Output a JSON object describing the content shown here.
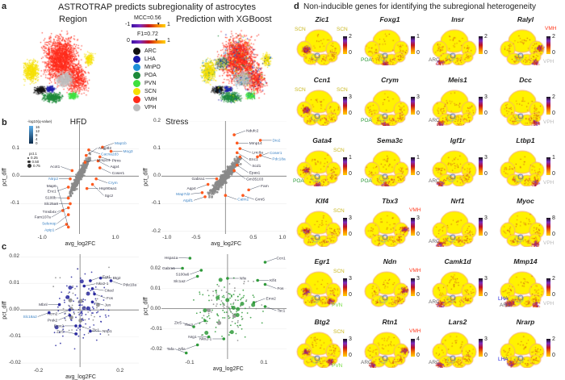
{
  "panel_a": {
    "letter": "a",
    "title": "ASTROTRAP predicts subregionality of astrocytes",
    "left_title": "Region",
    "right_title": "Prediction with XGBoost",
    "mcc": {
      "label": "MCC=0.56",
      "min": "-1",
      "max": "1",
      "value": 0.56
    },
    "f1": {
      "label": "F1=0.72",
      "min": "0",
      "max": "1",
      "value": 0.72
    },
    "legend": [
      {
        "name": "ARC",
        "color": "#111111"
      },
      {
        "name": "LHA",
        "color": "#1a1aa8"
      },
      {
        "name": "MnPO",
        "color": "#1e90d8"
      },
      {
        "name": "POA",
        "color": "#1d8a3a"
      },
      {
        "name": "PVN",
        "color": "#3ee03e"
      },
      {
        "name": "SCN",
        "color": "#f5e000"
      },
      {
        "name": "VMH",
        "color": "#ff2a1a"
      },
      {
        "name": "VPH",
        "color": "#bdbdbd"
      }
    ]
  },
  "panel_b": {
    "letter": "b"
  },
  "panel_c": {
    "letter": "c"
  },
  "legend_b": {
    "qtitle": "-log10(q-value)",
    "qticks": [
      "16",
      "12",
      "8",
      "4",
      "0"
    ],
    "ptitle": "pct.1",
    "pticks": [
      "0.25",
      "0.50",
      "0.75"
    ]
  },
  "chart_data": [
    {
      "id": "hfd",
      "type": "scatter",
      "title": "HFD",
      "xlabel": "avg_log2FC",
      "ylabel": "pct_diff",
      "xlim": [
        -1.6,
        1.6
      ],
      "ylim": [
        -0.21,
        0.2
      ],
      "xticks": [
        "-1.0",
        "1.0"
      ],
      "xtickv": [
        -1,
        1
      ],
      "yticks": [
        "0.1",
        "0.0",
        "-0.1"
      ],
      "ytickv": [
        0.1,
        0,
        -0.1
      ],
      "point_color": "#ff5a1f",
      "points": [
        {
          "g": "Map1b",
          "x": 0.62,
          "y": 0.105,
          "c": "#3b82c4"
        },
        {
          "g": "Mog3",
          "x": 0.85,
          "y": 0.09,
          "c": "#3b82c4"
        },
        {
          "g": "Cacna2d3",
          "x": 0.25,
          "y": 0.095,
          "c": "#3b82c4"
        },
        {
          "g": "Angptl2",
          "x": 0.18,
          "y": 0.075,
          "c": "#334"
        },
        {
          "g": "Ptms",
          "x": 0.55,
          "y": 0.07,
          "c": "#334"
        },
        {
          "g": "Aqp4",
          "x": 0.5,
          "y": 0.055,
          "c": "#334"
        },
        {
          "g": "Mmp14",
          "x": 0.15,
          "y": 0.05,
          "c": "#334"
        },
        {
          "g": "Coser1",
          "x": 0.55,
          "y": 0.03,
          "c": "#334"
        },
        {
          "g": "Crym",
          "x": 0.45,
          "y": -0.01,
          "c": "#3b82c4"
        },
        {
          "g": "Acot1",
          "x": -0.2,
          "y": 0.02,
          "c": "#334"
        },
        {
          "g": "Ntrp2",
          "x": -0.25,
          "y": -0.01,
          "c": "#3b82c4"
        },
        {
          "g": "Enc1",
          "x": -0.3,
          "y": -0.04,
          "c": "#334"
        },
        {
          "g": "S100b",
          "x": -0.3,
          "y": -0.08,
          "c": "#334"
        },
        {
          "g": "Slc25a8",
          "x": -0.25,
          "y": -0.1,
          "c": "#334"
        },
        {
          "g": "Tmsb4x",
          "x": -0.3,
          "y": -0.115,
          "c": "#334"
        },
        {
          "g": "Fam107a",
          "x": -0.45,
          "y": -0.125,
          "c": "#334"
        },
        {
          "g": "Selenop",
          "x": -0.3,
          "y": -0.14,
          "c": "#3b82c4"
        },
        {
          "g": "Apip1",
          "x": -0.35,
          "y": -0.175,
          "c": "#3b82c4"
        },
        {
          "g": "Map6",
          "x": -0.3,
          "y": -0.185,
          "c": "#334"
        },
        {
          "g": "Hsp90aa1",
          "x": 0.2,
          "y": -0.045,
          "c": "#334"
        },
        {
          "g": "Sgcz",
          "x": 0.35,
          "y": -0.03,
          "c": "#334"
        }
      ]
    },
    {
      "id": "stress",
      "type": "scatter",
      "title": "Stress",
      "xlabel": "avg_log2FC",
      "ylabel": "pct_diff",
      "xlim": [
        -1.1,
        1.05
      ],
      "ylim": [
        -0.21,
        0.2
      ],
      "xticks": [
        "-1.0",
        "-0.5",
        "0.5",
        "1.0"
      ],
      "xtickv": [
        -1,
        -0.5,
        0.5,
        1
      ],
      "yticks": [
        "0.2",
        "0.1",
        "0.0",
        "-0.1",
        "-0.2"
      ],
      "ytickv": [
        0.2,
        0.1,
        0,
        -0.1,
        -0.2
      ],
      "point_color": "#ff5a1f",
      "points": [
        {
          "g": "Ndufc2",
          "x": 0.15,
          "y": 0.15,
          "c": "#334"
        },
        {
          "g": "Mmp14",
          "x": 0.2,
          "y": 0.12,
          "c": "#334"
        },
        {
          "g": "Lrrc8a",
          "x": 0.25,
          "y": 0.1,
          "c": "#334"
        },
        {
          "g": "Enc1",
          "x": 0.2,
          "y": 0.085,
          "c": "#334"
        },
        {
          "g": "Scd1",
          "x": 0.25,
          "y": 0.07,
          "c": "#334"
        },
        {
          "g": "Epas1",
          "x": 0.2,
          "y": 0.04,
          "c": "#334"
        },
        {
          "g": "Gm35103",
          "x": 0.15,
          "y": 0.02,
          "c": "#334"
        },
        {
          "g": "Gabra1",
          "x": -0.15,
          "y": -0.01,
          "c": "#334"
        },
        {
          "g": "Aqp4",
          "x": -0.3,
          "y": -0.03,
          "c": "#334"
        },
        {
          "g": "Map7d2",
          "x": -0.4,
          "y": -0.06,
          "c": "#3b82c4"
        },
        {
          "g": "Atpif1",
          "x": -0.35,
          "y": -0.075,
          "c": "#3b82c4"
        },
        {
          "g": "Calm2",
          "x": 0.0,
          "y": -0.07,
          "c": "#3b82c4"
        },
        {
          "g": "Coser1",
          "x": 0.55,
          "y": 0.07,
          "c": "#3b82c4"
        },
        {
          "g": "Dio2",
          "x": 0.6,
          "y": 0.13,
          "c": "#3b82c4"
        },
        {
          "g": "Grm5",
          "x": 0.3,
          "y": -0.07,
          "c": "#334"
        },
        {
          "g": "Fam",
          "x": 0.4,
          "y": -0.05,
          "c": "#334"
        },
        {
          "g": "Pdc18a",
          "x": 0.6,
          "y": 0.075,
          "c": "#3b82c4"
        }
      ]
    },
    {
      "id": "c_left",
      "type": "scatter",
      "xlabel": "avg_log2FC",
      "ylabel": "pct_diff",
      "xlim": [
        -0.29,
        0.285
      ],
      "ylim": [
        -0.0215,
        0.021
      ],
      "xticks": [
        "-0.2",
        "0.2"
      ],
      "xtickv": [
        -0.2,
        0.2
      ],
      "yticks": [
        "0.02",
        "0.01",
        "0.00",
        "-0.01",
        "-0.02"
      ],
      "ytickv": [
        0.02,
        0.01,
        0,
        -0.01,
        -0.02
      ],
      "point_color": "#2b2ba0",
      "points": [
        {
          "g": "Egr1",
          "x": 0.05,
          "y": 0.011,
          "c": "#334"
        },
        {
          "g": "Btg2",
          "x": 0.1,
          "y": 0.012,
          "c": "#334"
        },
        {
          "g": "Pde10a",
          "x": 0.15,
          "y": 0.011,
          "c": "#334"
        },
        {
          "g": "Nkx2-1",
          "x": 0.02,
          "y": 0.009,
          "c": "#334"
        },
        {
          "g": "Cited",
          "x": 0.06,
          "y": 0.008,
          "c": "#334"
        },
        {
          "g": "Fos",
          "x": 0.07,
          "y": 0.006,
          "c": "#334"
        },
        {
          "g": "Jun",
          "x": 0.06,
          "y": 0.003,
          "c": "#334"
        },
        {
          "g": "Mbnl",
          "x": -0.1,
          "y": 0.002,
          "c": "#334"
        },
        {
          "g": "Hcrn2",
          "x": -0.05,
          "y": 0.0,
          "c": "#334"
        },
        {
          "g": "Prok2",
          "x": -0.05,
          "y": -0.002,
          "c": "#334"
        },
        {
          "g": "Emx2",
          "x": -0.02,
          "y": -0.006,
          "c": "#334"
        },
        {
          "g": "Zic1",
          "x": 0.0,
          "y": -0.006,
          "c": "#334"
        },
        {
          "g": "Zic5",
          "x": -0.02,
          "y": -0.009,
          "c": "#334"
        },
        {
          "g": "Ntrp1",
          "x": 0.05,
          "y": -0.008,
          "c": "#334"
        },
        {
          "g": "Slc18a2",
          "x": -0.15,
          "y": -0.001,
          "c": "#3b82c4"
        }
      ]
    },
    {
      "id": "c_right",
      "type": "scatter",
      "xlabel": "avg_log2FC",
      "ylabel": "pct_diff",
      "xlim": [
        -0.176,
        0.157
      ],
      "ylim": [
        -0.025,
        0.027
      ],
      "xticks": [
        "-0.1",
        "0.1"
      ],
      "xtickv": [
        -0.1,
        0.1
      ],
      "yticks": [
        "0.02",
        "0.01",
        "0.00",
        "-0.01",
        "-0.02"
      ],
      "ytickv": [
        0.02,
        0.01,
        0,
        -0.01,
        -0.02
      ],
      "point_color": "#2f9a3a",
      "points": [
        {
          "g": "Hspa1a",
          "x": -0.1,
          "y": 0.025,
          "c": "#334"
        },
        {
          "g": "Gabra1",
          "x": -0.12,
          "y": 0.02,
          "c": "#334"
        },
        {
          "g": "S100a6",
          "x": -0.07,
          "y": 0.019,
          "c": "#334"
        },
        {
          "g": "Slc1a2",
          "x": -0.08,
          "y": 0.016,
          "c": "#334"
        },
        {
          "g": "Klf4",
          "x": 0.08,
          "y": 0.014,
          "c": "#334"
        },
        {
          "g": "Fos",
          "x": 0.1,
          "y": 0.012,
          "c": "#334"
        },
        {
          "g": "Ccn1",
          "x": 0.1,
          "y": 0.023,
          "c": "#334"
        },
        {
          "g": "Nfix",
          "x": 0.0,
          "y": 0.015,
          "c": "#334"
        },
        {
          "g": "Tsc1",
          "x": 0.1,
          "y": 0.001,
          "c": "#334"
        },
        {
          "g": "Emx2",
          "x": 0.07,
          "y": 0.003,
          "c": "#334"
        },
        {
          "g": "Nkx2-1",
          "x": -0.01,
          "y": -0.015,
          "c": "#334"
        },
        {
          "g": "Nfia",
          "x": -0.08,
          "y": -0.018,
          "c": "#334"
        },
        {
          "g": "Zic5",
          "x": -0.09,
          "y": -0.009,
          "c": "#334"
        },
        {
          "g": "Nrg1",
          "x": -0.05,
          "y": -0.014,
          "c": "#334"
        },
        {
          "g": "Tbx3",
          "x": -0.06,
          "y": -0.006,
          "c": "#334"
        },
        {
          "g": "Tafa",
          "x": -0.11,
          "y": -0.022,
          "c": "#334"
        }
      ]
    }
  ],
  "panel_d": {
    "letter": "d",
    "title": "Non-inducible genes for identifying the subregional heterogeneity",
    "region_colors": {
      "SCN": "#c9b820",
      "POA": "#2f9a3a",
      "ARC": "#666666",
      "VMH": "#ff3b1f",
      "VPH": "#bbbbbb",
      "PVN": "#7be04a",
      "LHA": "#2222dd"
    },
    "genes": [
      {
        "name": "Zic1",
        "max": "2",
        "regions": [
          "SCN",
          "SCN"
        ]
      },
      {
        "name": "Foxg1",
        "max": "1",
        "regions": [
          "POA"
        ]
      },
      {
        "name": "Insr",
        "max": "2",
        "regions": [
          "ARC"
        ]
      },
      {
        "name": "Ralyl",
        "max": "2",
        "regions": [
          "VMH",
          "VPH"
        ]
      },
      {
        "name": "Ccn1",
        "max": "3",
        "regions": [
          "SCN",
          "SCN"
        ]
      },
      {
        "name": "Crym",
        "max": "3",
        "regions": [
          "POA"
        ]
      },
      {
        "name": "Meis1",
        "max": "3",
        "regions": [
          "ARC"
        ]
      },
      {
        "name": "Dcc",
        "max": "2",
        "regions": [
          "VPH"
        ]
      },
      {
        "name": "Gata4",
        "max": "1",
        "regions": [
          "SCN",
          "POA"
        ]
      },
      {
        "name": "Sema3c",
        "max": "1",
        "regions": [
          "POA"
        ]
      },
      {
        "name": "Igf1r",
        "max": "3",
        "regions": [
          "ARC"
        ]
      },
      {
        "name": "Ltbp1",
        "max": "1",
        "regions": [
          "VPH"
        ]
      },
      {
        "name": "Klf4",
        "max": "3",
        "regions": [
          "SCN"
        ]
      },
      {
        "name": "Tbx3",
        "max": "3",
        "regions": [
          "VMH"
        ]
      },
      {
        "name": "Nrf1",
        "max": "3",
        "regions": [
          "ARC"
        ]
      },
      {
        "name": "Myoc",
        "max": "8",
        "regions": [
          "VPH"
        ]
      },
      {
        "name": "Egr1",
        "max": "3",
        "regions": [
          "SCN",
          "PVN"
        ]
      },
      {
        "name": "Ndn",
        "max": "3",
        "regions": [
          "VMH"
        ]
      },
      {
        "name": "Camk1d",
        "max": "3",
        "regions": [
          "ARC"
        ]
      },
      {
        "name": "Mmp14",
        "max": "2",
        "regions": [
          "LHA",
          "ARC",
          "VPH"
        ]
      },
      {
        "name": "Btg2",
        "max": "3",
        "regions": [
          "SCN",
          "PVN"
        ]
      },
      {
        "name": "Rtn1",
        "max": "4",
        "regions": [
          "VMH",
          "ARC"
        ]
      },
      {
        "name": "Lars2",
        "max": "3",
        "regions": [
          "ARC"
        ]
      },
      {
        "name": "Nrarp",
        "max": "2",
        "regions": [
          "LHA"
        ]
      }
    ]
  }
}
